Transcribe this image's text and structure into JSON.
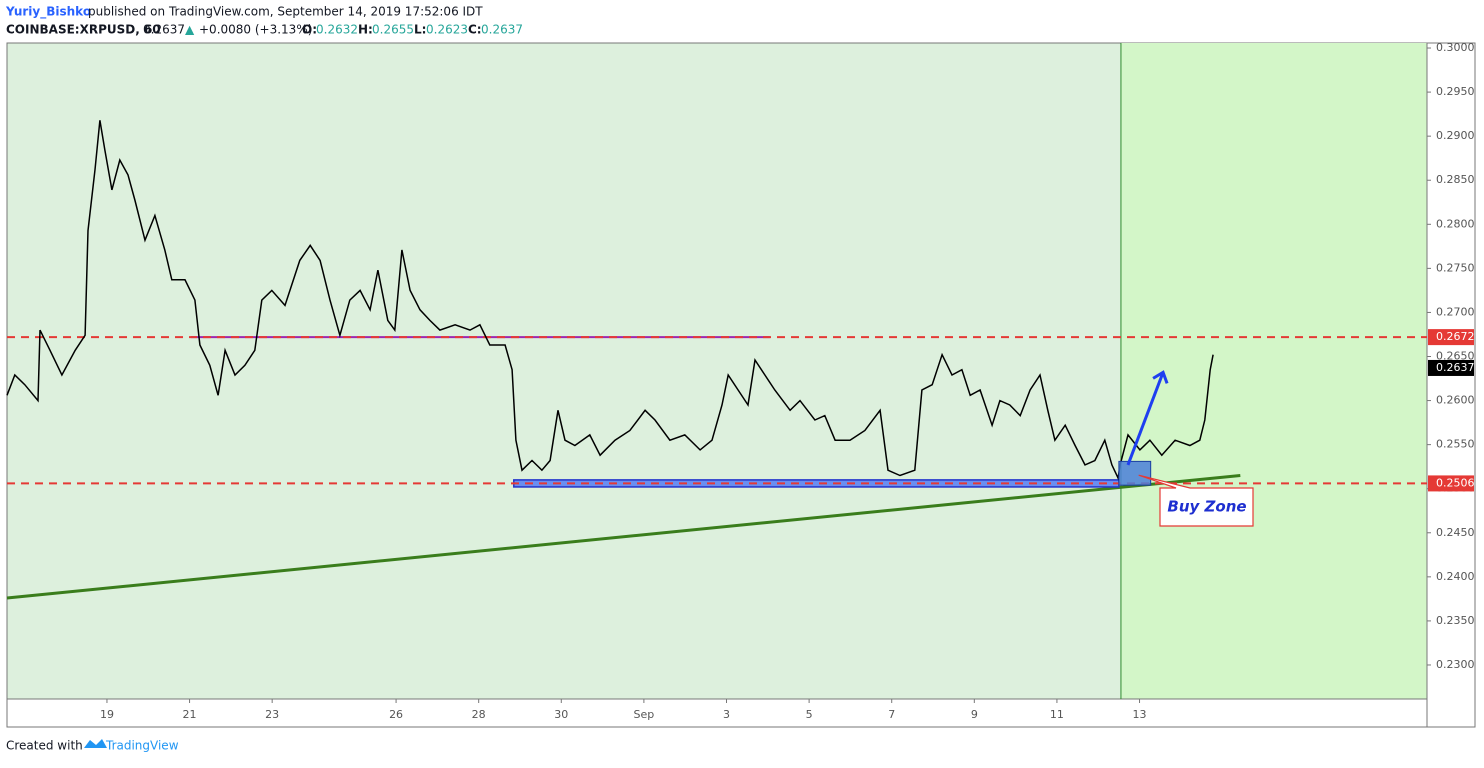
{
  "header": {
    "author": "Yuriy_Bishko",
    "published": "published on TradingView.com, September 14, 2019 17:52:06 IDT",
    "symbol": "COINBASE:XRPUSD, 60",
    "last": "0.2637",
    "arrow": "▲",
    "change": "+0.0080 (+3.13%)",
    "open_label": "O:",
    "open": "0.2632",
    "high_label": "H:",
    "high": "0.2655",
    "low_label": "L:",
    "low": "0.2623",
    "close_label": "C:",
    "close": "0.2637"
  },
  "footer": {
    "created": "Created with",
    "brand": "TradingView"
  },
  "chart_data": {
    "type": "line",
    "color": "#000000",
    "x": [
      -2.42,
      -2.23,
      -1.99,
      -1.67,
      -1.62,
      -1.38,
      -1.09,
      -0.77,
      -0.53,
      -0.46,
      -0.29,
      -0.17,
      -0.05,
      0.12,
      0.31,
      0.51,
      0.68,
      0.92,
      1.16,
      1.4,
      1.57,
      1.89,
      2.13,
      2.25,
      2.49,
      2.69,
      2.86,
      3.1,
      3.34,
      3.58,
      3.75,
      3.99,
      4.31,
      4.67,
      4.92,
      5.16,
      5.4,
      5.64,
      5.88,
      6.13,
      6.37,
      6.56,
      6.8,
      6.97,
      7.14,
      7.34,
      7.58,
      7.82,
      8.06,
      8.43,
      8.79,
      9.03,
      9.27,
      9.64,
      9.81,
      9.9,
      10.05,
      10.29,
      10.53,
      10.73,
      10.92,
      11.09,
      11.33,
      11.69,
      11.94,
      12.3,
      12.66,
      13.03,
      13.27,
      13.63,
      13.99,
      14.36,
      14.65,
      14.89,
      15.04,
      15.28,
      15.52,
      15.69,
      15.93,
      16.17,
      16.54,
      16.78,
      17.14,
      17.38,
      17.63,
      17.99,
      18.35,
      18.72,
      18.91,
      19.2,
      19.56,
      19.73,
      19.98,
      20.22,
      20.46,
      20.7,
      20.9,
      21.14,
      21.43,
      21.62,
      21.86,
      22.11,
      22.35,
      22.59,
      22.78,
      22.95,
      23.2,
      23.44,
      23.68,
      23.92,
      24.16,
      24.33,
      24.48,
      24.53,
      24.72,
      25.01,
      25.25,
      25.54,
      25.86,
      26.22,
      26.46,
      26.58,
      26.71,
      26.78
    ],
    "values": [
      0.2606,
      0.2629,
      0.2618,
      0.26,
      0.268,
      0.2657,
      0.2629,
      0.2657,
      0.2674,
      0.2793,
      0.2862,
      0.2918,
      0.2884,
      0.2839,
      0.2873,
      0.2856,
      0.2827,
      0.2782,
      0.281,
      0.2771,
      0.2737,
      0.2737,
      0.2714,
      0.2663,
      0.264,
      0.2606,
      0.2657,
      0.2629,
      0.264,
      0.2657,
      0.2714,
      0.2725,
      0.2708,
      0.2759,
      0.2776,
      0.2759,
      0.2714,
      0.2674,
      0.2714,
      0.2725,
      0.2703,
      0.2748,
      0.2691,
      0.268,
      0.2771,
      0.2725,
      0.2703,
      0.2691,
      0.268,
      0.2686,
      0.268,
      0.2686,
      0.2663,
      0.2663,
      0.2635,
      0.2555,
      0.2521,
      0.2532,
      0.2521,
      0.2532,
      0.2589,
      0.2555,
      0.2549,
      0.2561,
      0.2538,
      0.2555,
      0.2566,
      0.2589,
      0.2578,
      0.2555,
      0.2561,
      0.2544,
      0.2555,
      0.2595,
      0.2629,
      0.2612,
      0.2595,
      0.2646,
      0.2629,
      0.2612,
      0.2589,
      0.26,
      0.2578,
      0.2583,
      0.2555,
      0.2555,
      0.2566,
      0.2589,
      0.2521,
      0.2515,
      0.2521,
      0.2612,
      0.2618,
      0.2652,
      0.2629,
      0.2635,
      0.2606,
      0.2612,
      0.2572,
      0.26,
      0.2595,
      0.2583,
      0.2612,
      0.2629,
      0.2589,
      0.2555,
      0.2572,
      0.2549,
      0.2527,
      0.2532,
      0.2555,
      0.2527,
      0.2512,
      0.2527,
      0.2561,
      0.2544,
      0.2555,
      0.2538,
      0.2555,
      0.2549,
      0.2555,
      0.2578,
      0.2635,
      0.2652
    ],
    "xlim": [
      -2.42,
      31.96
    ],
    "xticks": [
      {
        "value": 0,
        "label": "19"
      },
      {
        "value": 2,
        "label": "21"
      },
      {
        "value": 4,
        "label": "23"
      },
      {
        "value": 7,
        "label": "26"
      },
      {
        "value": 9,
        "label": "28"
      },
      {
        "value": 11,
        "label": "30"
      },
      {
        "value": 13,
        "label": "Sep"
      },
      {
        "value": 15,
        "label": "3"
      },
      {
        "value": 17,
        "label": "5"
      },
      {
        "value": 19,
        "label": "7"
      },
      {
        "value": 21,
        "label": "9"
      },
      {
        "value": 23,
        "label": "11"
      },
      {
        "value": 25,
        "label": "13"
      }
    ],
    "ylim": [
      0.22614,
      0.30057
    ],
    "yticks": [
      {
        "value": 0.23,
        "label": "0.2300"
      },
      {
        "value": 0.235,
        "label": "0.2350"
      },
      {
        "value": 0.24,
        "label": "0.2400"
      },
      {
        "value": 0.245,
        "label": "0.2450"
      },
      {
        "value": 0.25,
        "label": "0.2500"
      },
      {
        "value": 0.255,
        "label": "0.2550"
      },
      {
        "value": 0.26,
        "label": "0.2600"
      },
      {
        "value": 0.265,
        "label": "0.2650"
      },
      {
        "value": 0.27,
        "label": "0.2700"
      },
      {
        "value": 0.275,
        "label": "0.2750"
      },
      {
        "value": 0.28,
        "label": "0.2800"
      },
      {
        "value": 0.285,
        "label": "0.2850"
      },
      {
        "value": 0.29,
        "label": "0.2900"
      },
      {
        "value": 0.295,
        "label": "0.2950"
      },
      {
        "value": 0.3,
        "label": "0.3000"
      }
    ],
    "levels": [
      0.2672,
      0.2506
    ],
    "last_price": 0.2637,
    "trend_line": {
      "x": [
        -2.42,
        27.44
      ],
      "y": [
        0.2376,
        0.2515
      ]
    },
    "resistance_line": {
      "x": [
        2.03,
        16.05
      ],
      "y": 0.2672
    },
    "support_band": {
      "x": [
        9.85,
        24.5
      ],
      "y": [
        0.2502,
        0.251
      ]
    },
    "buy_zone": {
      "x": [
        24.5,
        25.27
      ],
      "y": [
        0.2504,
        0.2531
      ]
    },
    "vertical_line": 24.55,
    "arrow": {
      "x": [
        24.72,
        25.57
      ],
      "y": [
        0.2527,
        0.2632
      ]
    },
    "callout": "Buy Zone"
  }
}
